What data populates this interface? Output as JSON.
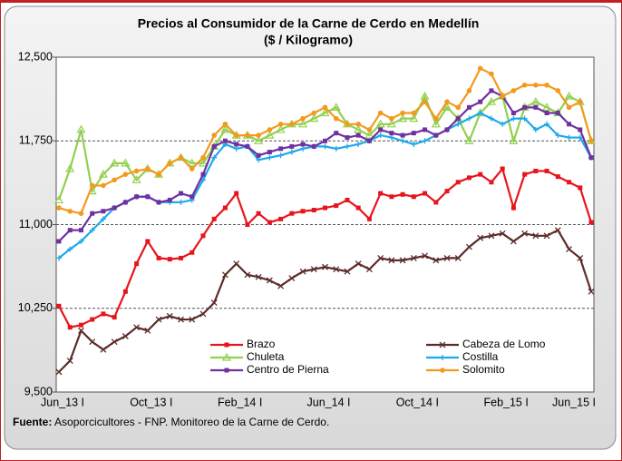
{
  "chart_data": {
    "type": "line",
    "title": "Precios al Consumidor de la Carne de Cerdo en Medellín",
    "subtitle": "($ / Kilogramo)",
    "source": {
      "label": "Fuente:",
      "text": "Asoporcicultores - FNP. Monitoreo de la Carne de Cerdo."
    },
    "categories": [
      "Jun_13 I",
      null,
      null,
      null,
      null,
      null,
      null,
      null,
      "Oct_13 I",
      null,
      null,
      null,
      null,
      null,
      null,
      null,
      "Feb_14 I",
      null,
      null,
      null,
      null,
      null,
      null,
      null,
      "Jun_14 I",
      null,
      null,
      null,
      null,
      null,
      null,
      null,
      "Oct_14 I",
      null,
      null,
      null,
      null,
      null,
      null,
      null,
      "Feb_15 I",
      null,
      null,
      null,
      null,
      null,
      null,
      null,
      "Jun_15 I"
    ],
    "ylim": [
      9500,
      12500
    ],
    "yticks": [
      {
        "value": 9500,
        "label": "9,500"
      },
      {
        "value": 10250,
        "label": "10,250"
      },
      {
        "value": 11000,
        "label": "11,000"
      },
      {
        "value": 11750,
        "label": "11,750"
      },
      {
        "value": 12500,
        "label": "12,500"
      }
    ],
    "grid": true,
    "series": [
      {
        "name": "Brazo",
        "color": "#e8141c",
        "marker": "square",
        "values": [
          10270,
          10080,
          10100,
          10150,
          10200,
          10170,
          10400,
          10650,
          10850,
          10700,
          10690,
          10700,
          10750,
          10900,
          11050,
          11150,
          11280,
          11000,
          11100,
          11020,
          11050,
          11100,
          11120,
          11130,
          11150,
          11170,
          11220,
          11150,
          11050,
          11280,
          11250,
          11270,
          11250,
          11280,
          11200,
          11300,
          11380,
          11420,
          11450,
          11380,
          11500,
          11150,
          11450,
          11480,
          11480,
          11430,
          11380,
          11330,
          11020
        ]
      },
      {
        "name": "Cabeza de Lomo",
        "color": "#5b2c28",
        "marker": "x",
        "values": [
          9680,
          9780,
          10050,
          9950,
          9880,
          9950,
          10000,
          10080,
          10050,
          10150,
          10180,
          10150,
          10150,
          10200,
          10300,
          10550,
          10650,
          10550,
          10530,
          10500,
          10450,
          10520,
          10580,
          10600,
          10620,
          10600,
          10580,
          10650,
          10600,
          10700,
          10680,
          10680,
          10700,
          10720,
          10680,
          10700,
          10700,
          10800,
          10880,
          10900,
          10920,
          10850,
          10920,
          10900,
          10900,
          10950,
          10780,
          10700,
          10400
        ]
      },
      {
        "name": "Chuleta",
        "color": "#92d050",
        "marker": "triangle",
        "values": [
          11220,
          11500,
          11850,
          11300,
          11450,
          11550,
          11550,
          11400,
          11500,
          11450,
          11550,
          11600,
          11550,
          11550,
          11700,
          11850,
          11800,
          11800,
          11750,
          11800,
          11850,
          11900,
          11900,
          11950,
          12000,
          12050,
          11900,
          11850,
          11800,
          11900,
          11900,
          11950,
          11950,
          12150,
          11900,
          12050,
          11950,
          11750,
          12000,
          12100,
          12150,
          11750,
          12050,
          12100,
          12050,
          12000,
          12150,
          12100,
          11750
        ]
      },
      {
        "name": "Costilla",
        "color": "#1fa9ea",
        "marker": "plus",
        "values": [
          10700,
          10780,
          10850,
          10950,
          11050,
          11150,
          11200,
          11250,
          11250,
          11200,
          11200,
          11200,
          11220,
          11400,
          11600,
          11720,
          11680,
          11700,
          11580,
          11600,
          11620,
          11650,
          11680,
          11700,
          11700,
          11680,
          11700,
          11720,
          11750,
          11800,
          11780,
          11750,
          11720,
          11750,
          11800,
          11850,
          11900,
          11950,
          12000,
          11950,
          11900,
          11950,
          11950,
          11850,
          11900,
          11800,
          11780,
          11780,
          11600
        ]
      },
      {
        "name": "Centro de Pierna",
        "color": "#7030a0",
        "marker": "square",
        "values": [
          10850,
          10950,
          10950,
          11100,
          11120,
          11150,
          11200,
          11250,
          11250,
          11200,
          11220,
          11280,
          11250,
          11450,
          11700,
          11750,
          11720,
          11700,
          11620,
          11650,
          11680,
          11700,
          11720,
          11700,
          11750,
          11820,
          11780,
          11800,
          11750,
          11850,
          11820,
          11800,
          11820,
          11850,
          11800,
          11850,
          11950,
          12050,
          12100,
          12200,
          12150,
          12000,
          12050,
          12050,
          12000,
          12000,
          11900,
          11850,
          11600
        ]
      },
      {
        "name": "Solomito",
        "color": "#f39a1e",
        "marker": "circle",
        "values": [
          11150,
          11120,
          11100,
          11350,
          11350,
          11400,
          11450,
          11480,
          11500,
          11450,
          11550,
          11600,
          11500,
          11600,
          11800,
          11900,
          11800,
          11800,
          11800,
          11850,
          11900,
          11900,
          11950,
          12000,
          12050,
          11950,
          11900,
          11900,
          11850,
          12000,
          11950,
          12000,
          12000,
          12100,
          11950,
          12100,
          12050,
          12200,
          12400,
          12350,
          12150,
          12200,
          12250,
          12250,
          12250,
          12200,
          12050,
          12100,
          11750
        ]
      }
    ]
  }
}
